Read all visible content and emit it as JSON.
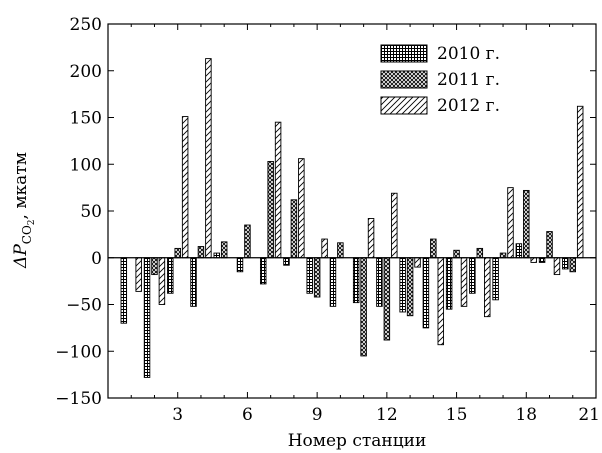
{
  "chart_data": {
    "type": "bar",
    "xlabel": "Номер станции",
    "ylabel": {
      "prefix": "ΔP",
      "subscript": "CO",
      "subscript2": "2",
      "suffix": ", мкатм"
    },
    "xlim": [
      0,
      21
    ],
    "ylim": [
      -150,
      250
    ],
    "xticks": [
      3,
      6,
      9,
      12,
      15,
      18,
      21
    ],
    "yticks": [
      -150,
      -100,
      -50,
      0,
      50,
      100,
      150,
      200,
      250
    ],
    "legend_position": "top-right",
    "grid": false,
    "categories": [
      1,
      2,
      3,
      4,
      5,
      6,
      7,
      8,
      9,
      10,
      11,
      12,
      13,
      14,
      15,
      16,
      17,
      18,
      19,
      20
    ],
    "series": [
      {
        "name": "2010 г.",
        "pattern": "grid",
        "values": [
          -70,
          -128,
          -38,
          -52,
          5,
          -15,
          -28,
          -8,
          -38,
          -52,
          -48,
          -52,
          -58,
          -75,
          -55,
          -38,
          -45,
          15,
          -5,
          -12
        ]
      },
      {
        "name": "2011 г.",
        "pattern": "crosshatch",
        "values": [
          0,
          -18,
          10,
          12,
          17,
          35,
          103,
          62,
          -42,
          16,
          -105,
          -88,
          -62,
          20,
          8,
          10,
          5,
          72,
          28,
          -15
        ]
      },
      {
        "name": "2012 г.",
        "pattern": "diagonal",
        "values": [
          -36,
          -50,
          151,
          213,
          0,
          0,
          145,
          106,
          20,
          0,
          42,
          69,
          -10,
          -93,
          -52,
          -63,
          75,
          -5,
          -18,
          162
        ]
      }
    ]
  }
}
